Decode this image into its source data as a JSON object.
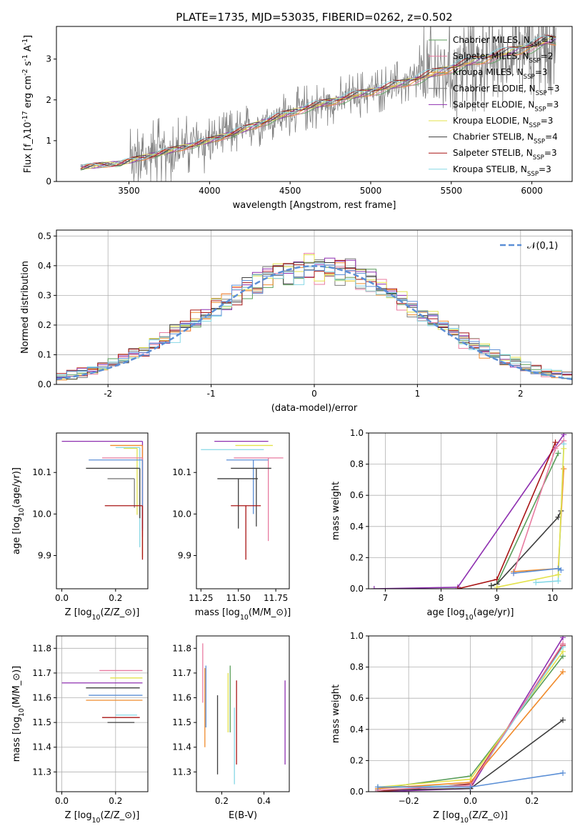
{
  "title": "PLATE=1735, MJD=53035, FIBERID=0262, z=0.502",
  "fit_colors": [
    "#5a9e5a",
    "#e87ba0",
    "#f08a2a",
    "#7c7c7c",
    "#8e2fb0",
    "#e3e24a",
    "#3d3d3d",
    "#a81414",
    "#86d8e6"
  ],
  "chart_data": [
    {
      "id": "spectrum",
      "type": "line",
      "xlabel": "wavelength [Angstrom, rest frame]",
      "ylabel": "Flux [f$_\\lambda$10$^{-17}$ erg cm$^{-2}$ s$^{-1}$ A$^{-1}$]",
      "xlim": [
        3050,
        6250
      ],
      "ylim": [
        0,
        3.8
      ],
      "xticks": [
        3500,
        4000,
        4500,
        5000,
        5500,
        6000
      ],
      "yticks": [
        0,
        1,
        2,
        3
      ],
      "grid": false,
      "legend": "top-right",
      "series": [
        {
          "name": "Chabrier MILES, N$_{SSP}$=3",
          "color": "#5a9e5a"
        },
        {
          "name": "Salpeter MILES, N$_{SSP}$=2",
          "color": "#e87ba0"
        },
        {
          "name": "Kroupa MILES, N$_{SSP}$=3",
          "color": "#f08a2a"
        },
        {
          "name": "Chabrier ELODIE, N$_{SSP}$=3",
          "color": "#7c7c7c"
        },
        {
          "name": "Salpeter ELODIE, N$_{SSP}$=3",
          "color": "#8e2fb0"
        },
        {
          "name": "Kroupa ELODIE, N$_{SSP}$=3",
          "color": "#e3e24a"
        },
        {
          "name": "Chabrier STELIB, N$_{SSP}$=4",
          "color": "#3d3d3d"
        },
        {
          "name": "Salpeter STELIB, N$_{SSP}$=3",
          "color": "#a81414"
        },
        {
          "name": "Kroupa STELIB, N$_{SSP}$=3",
          "color": "#86d8e6"
        }
      ],
      "continuum": {
        "x": [
          3200,
          3450,
          3500,
          3800,
          4000,
          4200,
          4400,
          4600,
          4800,
          5000,
          5200,
          5400,
          5600,
          5800,
          6000,
          6100
        ],
        "y": [
          0.35,
          0.45,
          0.5,
          0.8,
          1.0,
          1.25,
          1.55,
          1.8,
          2.0,
          2.2,
          2.4,
          2.65,
          2.9,
          3.1,
          3.3,
          3.45
        ]
      }
    },
    {
      "id": "residuals",
      "type": "histogram",
      "xlabel": "(data-model)/error",
      "ylabel": "Normed distribution",
      "xlim": [
        -2.5,
        2.5
      ],
      "ylim": [
        0,
        0.52
      ],
      "xticks": [
        -2,
        -1,
        0,
        1,
        2
      ],
      "yticks": [
        0.0,
        0.1,
        0.2,
        0.3,
        0.4,
        0.5
      ],
      "grid": true,
      "legend": "top-right",
      "reference": {
        "name": "$\\mathcal{N}(0,1)$",
        "color": "#5b8fd6",
        "mean": 0,
        "sigma": 1
      }
    },
    {
      "id": "age-vs-z",
      "type": "errorbar",
      "xlabel": "Z [log$_{10}$(Z/Z$_\\odot$)]",
      "ylabel": "age  [log$_{10}$(age/yr)]",
      "xlim": [
        -0.02,
        0.32
      ],
      "ylim": [
        9.82,
        10.195
      ],
      "xticks": [
        0.0,
        0.2
      ],
      "yticks": [
        9.9,
        10.0,
        10.1
      ],
      "grid": false,
      "points": [
        {
          "x": 0.3,
          "y": 10.175,
          "xerr_lo": 0.3,
          "yerr_lo": 0.21,
          "color": "#8e2fb0"
        },
        {
          "x": 0.3,
          "y": 10.165,
          "xerr_lo": 0.12,
          "yerr_lo": 0.27,
          "color": "#f08a2a"
        },
        {
          "x": 0.29,
          "y": 10.16,
          "xerr_lo": 0.09,
          "yerr_lo": 0.24,
          "color": "#86d8e6"
        },
        {
          "x": 0.28,
          "y": 10.158,
          "xerr_lo": 0.05,
          "yerr_lo": 0.16,
          "color": "#e3e24a"
        },
        {
          "x": 0.3,
          "y": 10.135,
          "xerr_lo": 0.15,
          "yerr_lo": 0.19,
          "color": "#e87ba0"
        },
        {
          "x": 0.3,
          "y": 10.13,
          "xerr_lo": 0.2,
          "yerr_lo": 0.17,
          "color": "#5b8fd6"
        },
        {
          "x": 0.29,
          "y": 10.11,
          "xerr_lo": 0.2,
          "yerr_lo": 0.12,
          "color": "#3d3d3d"
        },
        {
          "x": 0.27,
          "y": 10.085,
          "xerr_lo": 0.1,
          "yerr_lo": 0.07,
          "color": "#7c7c7c"
        },
        {
          "x": 0.3,
          "y": 10.02,
          "xerr_lo": 0.14,
          "yerr_lo": 0.13,
          "color": "#a81414"
        }
      ]
    },
    {
      "id": "age-vs-mass",
      "type": "errorbar",
      "xlabel": "mass [log$_{10}$(M/M$_\\odot$)]",
      "ylabel": "",
      "xlim": [
        11.22,
        11.84
      ],
      "ylim": [
        9.82,
        10.195
      ],
      "xticks": [
        11.25,
        11.5,
        11.75
      ],
      "yticks": [
        9.9,
        10.0,
        10.1
      ],
      "grid": false,
      "points": [
        {
          "x": 11.52,
          "y": 10.175,
          "xerr_lo": 0.18,
          "xerr_hi": 0.18,
          "color": "#8e2fb0"
        },
        {
          "x": 11.6,
          "y": 10.165,
          "xerr_lo": 0.12,
          "xerr_hi": 0.13,
          "color": "#e3e24a"
        },
        {
          "x": 11.55,
          "y": 10.155,
          "xerr_lo": 0.3,
          "xerr_hi": 0.12,
          "color": "#86d8e6"
        },
        {
          "x": 11.7,
          "y": 10.135,
          "xerr_lo": 0.23,
          "xerr_hi": 0.1,
          "yerr_lo": 0.2,
          "color": "#e87ba0"
        },
        {
          "x": 11.6,
          "y": 10.13,
          "xerr_lo": 0.18,
          "xerr_hi": 0.1,
          "yerr_lo": 0.13,
          "color": "#5b8fd6"
        },
        {
          "x": 11.62,
          "y": 10.11,
          "xerr_lo": 0.17,
          "xerr_hi": 0.1,
          "yerr_lo": 0.14,
          "color": "#3d3d3d"
        },
        {
          "x": 11.5,
          "y": 10.085,
          "xerr_lo": 0.14,
          "xerr_hi": 0.13,
          "yerr_lo": 0.12,
          "color": "#3d3d3d"
        },
        {
          "x": 11.55,
          "y": 10.02,
          "xerr_lo": 0.1,
          "xerr_hi": 0.1,
          "yerr_lo": 0.13,
          "color": "#a81414"
        }
      ]
    },
    {
      "id": "mass-weight-vs-age",
      "type": "line",
      "xlabel": "age  [log$_{10}$(age/yr)]",
      "ylabel": "mass weight",
      "xlim": [
        6.7,
        10.35
      ],
      "ylim": [
        0,
        1.0
      ],
      "xticks": [
        7,
        8,
        9,
        10
      ],
      "yticks": [
        0.0,
        0.2,
        0.4,
        0.6,
        0.8,
        1.0
      ],
      "grid": true,
      "series": [
        {
          "color": "#8e2fb0",
          "x": [
            6.8,
            8.3,
            10.2
          ],
          "y": [
            0.0,
            0.01,
            0.99
          ]
        },
        {
          "color": "#a81414",
          "x": [
            8.3,
            9.0,
            10.05
          ],
          "y": [
            0.0,
            0.06,
            0.94
          ]
        },
        {
          "color": "#5a9e5a",
          "x": [
            8.9,
            9.0,
            10.1
          ],
          "y": [
            0.02,
            0.03,
            0.87
          ]
        },
        {
          "color": "#3d3d3d",
          "x": [
            8.9,
            9.0,
            10.1,
            10.15
          ],
          "y": [
            0.02,
            0.03,
            0.46,
            0.5
          ]
        },
        {
          "color": "#e87ba0",
          "x": [
            9.3,
            10.05,
            10.2
          ],
          "y": [
            0.1,
            0.9,
            0.95
          ]
        },
        {
          "color": "#f08a2a",
          "x": [
            9.3,
            10.1,
            10.2
          ],
          "y": [
            0.11,
            0.13,
            0.77
          ]
        },
        {
          "color": "#86d8e6",
          "x": [
            9.7,
            10.1,
            10.2
          ],
          "y": [
            0.04,
            0.05,
            0.93
          ]
        },
        {
          "color": "#e3e24a",
          "x": [
            9.0,
            10.1,
            10.2
          ],
          "y": [
            0.01,
            0.09,
            0.9
          ]
        },
        {
          "color": "#5b8fd6",
          "x": [
            9.3,
            10.1,
            10.15
          ],
          "y": [
            0.1,
            0.13,
            0.12
          ]
        }
      ]
    },
    {
      "id": "mass-vs-z",
      "type": "errorbar",
      "xlabel": "Z [log$_{10}$(Z/Z$_\\odot$)]",
      "ylabel": "mass [log$_{10}$(M/M$_\\odot$)]",
      "xlim": [
        -0.02,
        0.32
      ],
      "ylim": [
        11.22,
        11.85
      ],
      "xticks": [
        0.0,
        0.2
      ],
      "yticks": [
        11.3,
        11.4,
        11.5,
        11.6,
        11.7,
        11.8
      ],
      "grid": true,
      "points": [
        {
          "x": 0.3,
          "y": 11.71,
          "xerr_lo": 0.16,
          "color": "#e87ba0"
        },
        {
          "x": 0.3,
          "y": 11.68,
          "xerr_lo": 0.12,
          "color": "#e3e24a"
        },
        {
          "x": 0.3,
          "y": 11.66,
          "xerr_lo": 0.3,
          "color": "#8e2fb0"
        },
        {
          "x": 0.29,
          "y": 11.64,
          "xerr_lo": 0.2,
          "color": "#3d3d3d"
        },
        {
          "x": 0.3,
          "y": 11.61,
          "xerr_lo": 0.2,
          "color": "#5b8fd6"
        },
        {
          "x": 0.3,
          "y": 11.59,
          "xerr_lo": 0.21,
          "color": "#f08a2a"
        },
        {
          "x": 0.29,
          "y": 11.52,
          "xerr_lo": 0.14,
          "color": "#a81414"
        },
        {
          "x": 0.28,
          "y": 11.53,
          "xerr_lo": 0.08,
          "color": "#86d8e6"
        },
        {
          "x": 0.27,
          "y": 11.5,
          "xerr_lo": 0.1,
          "color": "#3d3d3d"
        }
      ]
    },
    {
      "id": "mass-vs-ebv",
      "type": "errorbar",
      "xlabel": "E(B-V)",
      "ylabel": "",
      "xlim": [
        0.08,
        0.52
      ],
      "ylim": [
        11.22,
        11.85
      ],
      "xticks": [
        0.2,
        0.4
      ],
      "yticks": [
        11.3,
        11.4,
        11.5,
        11.6,
        11.7,
        11.8
      ],
      "grid": false,
      "points": [
        {
          "x": 0.11,
          "y": 11.7,
          "yerr_lo": 0.12,
          "yerr_hi": 0.12,
          "color": "#e87ba0"
        },
        {
          "x": 0.12,
          "y": 11.56,
          "yerr_lo": 0.16,
          "yerr_hi": 0.16,
          "color": "#f08a2a"
        },
        {
          "x": 0.125,
          "y": 11.61,
          "yerr_lo": 0.13,
          "yerr_hi": 0.12,
          "color": "#5b8fd6"
        },
        {
          "x": 0.18,
          "y": 11.45,
          "yerr_lo": 0.16,
          "yerr_hi": 0.16,
          "color": "#3d3d3d"
        },
        {
          "x": 0.23,
          "y": 11.58,
          "yerr_lo": 0.12,
          "yerr_hi": 0.12,
          "color": "#e3e24a"
        },
        {
          "x": 0.24,
          "y": 11.6,
          "yerr_lo": 0.14,
          "yerr_hi": 0.13,
          "color": "#5a9e5a"
        },
        {
          "x": 0.26,
          "y": 11.4,
          "yerr_lo": 0.15,
          "yerr_hi": 0.16,
          "color": "#86d8e6"
        },
        {
          "x": 0.27,
          "y": 11.5,
          "yerr_lo": 0.17,
          "yerr_hi": 0.17,
          "color": "#a81414"
        },
        {
          "x": 0.5,
          "y": 11.5,
          "yerr_lo": 0.17,
          "yerr_hi": 0.17,
          "color": "#8e2fb0"
        }
      ]
    },
    {
      "id": "mass-weight-vs-z",
      "type": "line",
      "xlabel": "Z [log$_{10}$(Z/Z$_\\odot$)]",
      "ylabel": "mass weight",
      "xlim": [
        -0.33,
        0.33
      ],
      "ylim": [
        0,
        1.0
      ],
      "xticks": [
        -0.2,
        0.0,
        0.2
      ],
      "yticks": [
        0.0,
        0.2,
        0.4,
        0.6,
        0.8,
        1.0
      ],
      "grid": true,
      "series": [
        {
          "color": "#8e2fb0",
          "x": [
            -0.3,
            0.0,
            0.3
          ],
          "y": [
            0.0,
            0.02,
            0.99
          ]
        },
        {
          "color": "#a81414",
          "x": [
            -0.3,
            0.0,
            0.3
          ],
          "y": [
            0.0,
            0.05,
            0.94
          ]
        },
        {
          "color": "#5a9e5a",
          "x": [
            -0.3,
            0.0,
            0.3
          ],
          "y": [
            0.02,
            0.1,
            0.87
          ]
        },
        {
          "color": "#3d3d3d",
          "x": [
            -0.3,
            0.0,
            0.3
          ],
          "y": [
            0.01,
            0.02,
            0.46
          ]
        },
        {
          "color": "#e3e24a",
          "x": [
            -0.3,
            0.0,
            0.3
          ],
          "y": [
            0.03,
            0.08,
            0.9
          ]
        },
        {
          "color": "#86d8e6",
          "x": [
            -0.3,
            0.0,
            0.3
          ],
          "y": [
            0.03,
            0.04,
            0.93
          ]
        },
        {
          "color": "#f08a2a",
          "x": [
            -0.3,
            0.0,
            0.3
          ],
          "y": [
            0.02,
            0.06,
            0.77
          ]
        },
        {
          "color": "#e87ba0",
          "x": [
            -0.3,
            0.0,
            0.3
          ],
          "y": [
            0.01,
            0.04,
            0.95
          ]
        },
        {
          "color": "#5b8fd6",
          "x": [
            -0.3,
            0.0,
            0.3
          ],
          "y": [
            0.03,
            0.03,
            0.12
          ]
        }
      ]
    }
  ]
}
